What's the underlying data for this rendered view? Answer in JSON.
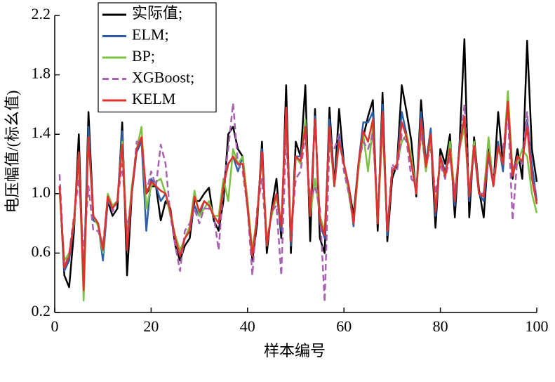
{
  "chart_data": {
    "type": "line",
    "x_label": "样本编号",
    "y_label": "电压幅值/(标幺值)",
    "x": [
      1,
      2,
      3,
      4,
      5,
      6,
      7,
      8,
      9,
      10,
      11,
      12,
      13,
      14,
      15,
      16,
      17,
      18,
      19,
      20,
      21,
      22,
      23,
      24,
      25,
      26,
      27,
      28,
      29,
      30,
      31,
      32,
      33,
      34,
      35,
      36,
      37,
      38,
      39,
      40,
      41,
      42,
      43,
      44,
      45,
      46,
      47,
      48,
      49,
      50,
      51,
      52,
      53,
      54,
      55,
      56,
      57,
      58,
      59,
      60,
      61,
      62,
      63,
      64,
      65,
      66,
      67,
      68,
      69,
      70,
      71,
      72,
      73,
      74,
      75,
      76,
      77,
      78,
      79,
      80,
      81,
      82,
      83,
      84,
      85,
      86,
      87,
      88,
      89,
      90,
      91,
      92,
      93,
      94,
      95,
      96,
      97,
      98,
      99,
      100
    ],
    "series": [
      {
        "name": "实际值;",
        "color": "#000000",
        "dash": false,
        "values": [
          1.05,
          0.45,
          0.37,
          0.75,
          1.4,
          0.35,
          1.55,
          0.85,
          0.8,
          0.6,
          0.95,
          0.85,
          0.9,
          1.48,
          0.45,
          1.0,
          1.3,
          1.35,
          1.0,
          1.05,
          1.05,
          0.82,
          0.95,
          0.9,
          0.65,
          0.55,
          0.65,
          0.7,
          0.95,
          0.95,
          1.0,
          1.04,
          0.82,
          0.75,
          0.95,
          1.4,
          1.45,
          1.3,
          1.25,
          0.95,
          0.55,
          0.8,
          1.35,
          0.6,
          0.9,
          1.1,
          0.7,
          1.73,
          0.6,
          1.35,
          1.25,
          1.73,
          0.68,
          1.57,
          0.7,
          0.6,
          1.58,
          1.05,
          1.57,
          1.2,
          1.05,
          0.85,
          1.2,
          1.38,
          1.52,
          1.63,
          0.75,
          1.68,
          0.68,
          1.1,
          1.2,
          1.73,
          1.55,
          1.35,
          0.98,
          1.63,
          1.2,
          1.38,
          0.77,
          1.3,
          1.2,
          1.4,
          0.84,
          1.35,
          2.04,
          0.84,
          1.38,
          1.03,
          0.84,
          1.3,
          1.05,
          1.55,
          1.2,
          1.6,
          1.1,
          1.3,
          1.1,
          2.03,
          1.3,
          1.08
        ]
      },
      {
        "name": "ELM;",
        "color": "#2b5fa8",
        "dash": false,
        "values": [
          1.05,
          0.48,
          0.55,
          0.8,
          1.25,
          0.4,
          1.45,
          0.82,
          0.8,
          0.55,
          0.95,
          0.9,
          0.95,
          1.42,
          0.65,
          1.0,
          1.28,
          1.35,
          0.75,
          1.1,
          1.05,
          0.95,
          1.0,
          0.88,
          0.7,
          0.58,
          0.7,
          0.75,
          0.92,
          0.85,
          0.95,
          0.92,
          0.85,
          0.8,
          1.05,
          1.2,
          1.25,
          1.15,
          1.25,
          0.9,
          0.58,
          0.85,
          1.3,
          0.65,
          0.88,
          1.0,
          0.75,
          1.58,
          0.65,
          1.25,
          1.25,
          1.45,
          0.85,
          1.52,
          0.8,
          0.7,
          1.5,
          1.05,
          1.4,
          1.2,
          1.05,
          0.78,
          1.2,
          1.48,
          1.48,
          1.55,
          0.8,
          1.6,
          0.72,
          1.15,
          1.2,
          1.55,
          1.4,
          1.2,
          1.0,
          1.55,
          1.2,
          1.44,
          0.85,
          1.25,
          1.15,
          1.3,
          0.92,
          1.35,
          1.5,
          0.95,
          1.3,
          1.0,
          0.95,
          1.25,
          1.05,
          1.35,
          1.15,
          1.62,
          1.15,
          1.25,
          1.2,
          1.5,
          1.2,
          0.95
        ]
      },
      {
        "name": "BP;",
        "color": "#7cc242",
        "dash": false,
        "values": [
          1.0,
          0.55,
          0.6,
          0.8,
          1.28,
          0.28,
          1.38,
          0.85,
          0.78,
          0.6,
          1.0,
          0.92,
          0.95,
          1.35,
          0.7,
          1.05,
          1.3,
          1.45,
          0.9,
          1.05,
          1.08,
          1.1,
          1.0,
          0.85,
          0.72,
          0.62,
          0.7,
          0.78,
          1.02,
          0.85,
          0.9,
          0.95,
          0.85,
          0.85,
          1.1,
          0.95,
          1.3,
          1.2,
          1.25,
          0.95,
          0.62,
          0.85,
          1.25,
          0.7,
          0.85,
          0.98,
          0.8,
          1.55,
          0.7,
          1.25,
          1.2,
          1.5,
          0.85,
          1.1,
          0.85,
          0.75,
          1.4,
          1.05,
          1.35,
          1.2,
          1.0,
          0.8,
          1.15,
          1.4,
          1.15,
          1.45,
          0.8,
          1.45,
          0.75,
          1.15,
          1.2,
          1.35,
          1.4,
          1.25,
          1.0,
          1.45,
          1.15,
          1.38,
          0.9,
          1.25,
          1.1,
          1.35,
          1.0,
          1.3,
          1.45,
          1.0,
          1.35,
          1.0,
          1.0,
          1.38,
          1.05,
          1.3,
          1.2,
          1.69,
          1.15,
          1.2,
          1.3,
          1.25,
          1.0,
          0.87
        ]
      },
      {
        "name": "XGBoost;",
        "color": "#a860b0",
        "dash": true,
        "values": [
          1.13,
          0.5,
          0.6,
          0.85,
          1.1,
          0.6,
          1.05,
          0.75,
          0.75,
          0.65,
          0.98,
          0.88,
          0.95,
          1.2,
          0.75,
          1.0,
          1.35,
          1.35,
          1.0,
          1.15,
          1.05,
          1.33,
          1.2,
          0.85,
          0.65,
          0.48,
          0.75,
          0.8,
          0.9,
          0.8,
          0.9,
          0.9,
          0.85,
          0.62,
          1.05,
          1.3,
          1.61,
          1.2,
          1.15,
          0.9,
          0.45,
          0.9,
          1.1,
          0.65,
          0.88,
          0.92,
          0.45,
          1.4,
          0.7,
          1.1,
          1.15,
          1.4,
          0.95,
          1.05,
          0.9,
          0.27,
          1.35,
          1.3,
          1.4,
          1.15,
          1.0,
          0.8,
          1.2,
          1.35,
          1.3,
          1.4,
          0.85,
          1.5,
          0.75,
          1.2,
          1.15,
          1.4,
          1.35,
          1.1,
          1.05,
          1.4,
          1.2,
          1.3,
          1.0,
          1.2,
          1.1,
          1.25,
          1.0,
          1.3,
          1.6,
          1.0,
          1.3,
          1.0,
          1.0,
          1.25,
          1.1,
          1.3,
          1.3,
          1.55,
          0.82,
          1.25,
          1.2,
          1.55,
          1.1,
          1.0
        ]
      },
      {
        "name": "KELM",
        "color": "#e0312e",
        "dash": false,
        "values": [
          1.05,
          0.5,
          0.58,
          0.82,
          1.28,
          0.35,
          1.38,
          0.85,
          0.8,
          0.62,
          0.98,
          0.9,
          0.95,
          1.33,
          0.62,
          1.02,
          1.3,
          1.38,
          1.0,
          1.08,
          1.05,
          1.02,
          1.0,
          0.88,
          0.7,
          0.58,
          0.7,
          0.75,
          0.98,
          0.88,
          0.95,
          0.92,
          0.85,
          0.8,
          1.05,
          1.2,
          1.25,
          1.2,
          1.2,
          0.92,
          0.58,
          0.85,
          1.28,
          0.65,
          0.88,
          1.0,
          0.78,
          1.58,
          0.68,
          1.25,
          1.22,
          1.45,
          0.85,
          1.5,
          0.82,
          0.72,
          1.45,
          1.05,
          1.35,
          1.2,
          1.05,
          0.8,
          1.2,
          1.42,
          1.35,
          1.5,
          0.8,
          1.55,
          0.75,
          1.15,
          1.2,
          1.48,
          1.38,
          1.2,
          1.0,
          1.5,
          1.18,
          1.4,
          0.88,
          1.25,
          1.12,
          1.3,
          0.95,
          1.32,
          1.52,
          0.98,
          1.32,
          1.0,
          0.98,
          1.28,
          1.05,
          1.32,
          1.2,
          1.62,
          1.12,
          1.25,
          1.22,
          1.45,
          1.1,
          0.93
        ]
      }
    ],
    "xlim": [
      0,
      100
    ],
    "xticks": [
      0,
      20,
      40,
      60,
      80,
      100
    ],
    "ylim": [
      0.2,
      2.2
    ],
    "yticks": [
      0.2,
      0.6,
      {
        "value": 1,
        "label": "1.0"
      },
      1.4,
      1.8,
      2.2
    ],
    "legend": "upper left"
  }
}
